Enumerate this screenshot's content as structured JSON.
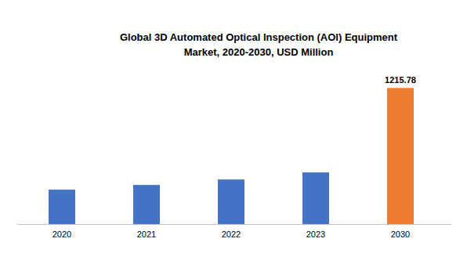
{
  "chart_data": {
    "type": "bar",
    "title": "Global 3D Automated Optical Inspection (AOI) Equipment Market, 2020-2030, USD Million",
    "categories": [
      "2020",
      "2021",
      "2022",
      "2023",
      "2030"
    ],
    "values": [
      307,
      349,
      398,
      461,
      1215.78
    ],
    "colors": [
      "#4472c4",
      "#4472c4",
      "#4472c4",
      "#4472c4",
      "#ed7d31"
    ],
    "value_labels": [
      null,
      null,
      null,
      null,
      "1215.78"
    ],
    "data_labels": true,
    "ylim": [
      0,
      1400
    ],
    "grid": false,
    "tick_labels": "x"
  }
}
